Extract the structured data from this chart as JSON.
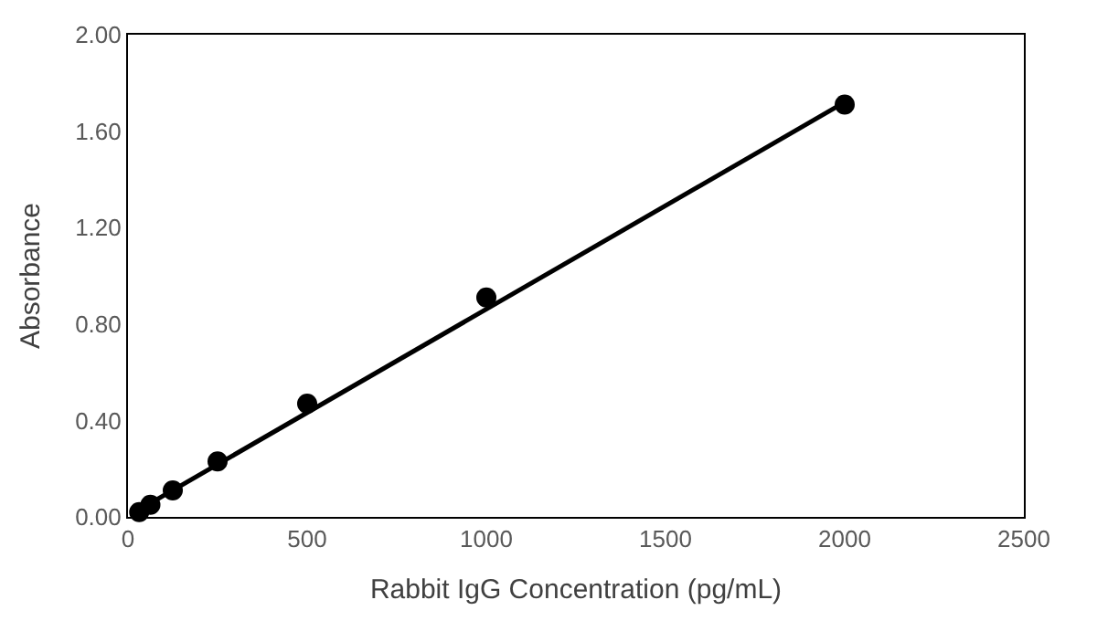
{
  "chart_data": {
    "type": "scatter",
    "xlabel": "Rabbit IgG Concentration (pg/mL)",
    "ylabel": "Absorbance",
    "x": [
      31.25,
      62.5,
      125,
      250,
      500,
      1000,
      2000
    ],
    "series": [
      {
        "color": "#000000",
        "marker": "circle",
        "values": [
          0.02,
          0.05,
          0.11,
          0.23,
          0.47,
          0.91,
          1.71
        ]
      },
      {
        "type": "line",
        "color": "#000000",
        "marker": "none",
        "line_style": "solid",
        "x": [
          31.25,
          2000
        ],
        "values": [
          0.03,
          1.72
        ]
      }
    ],
    "xlim": [
      0,
      2500
    ],
    "xticks": [
      0,
      500,
      1000,
      1500,
      2000,
      2500
    ],
    "ylim": [
      0,
      2
    ],
    "yticks": [
      {
        "value": 0,
        "label": "0.00"
      },
      {
        "value": 0.4,
        "label": "0.40"
      },
      {
        "value": 0.8,
        "label": "0.80"
      },
      {
        "value": 1.2,
        "label": "1.20"
      },
      {
        "value": 1.6,
        "label": "1.60"
      },
      {
        "value": 2,
        "label": "2.00"
      }
    ]
  }
}
